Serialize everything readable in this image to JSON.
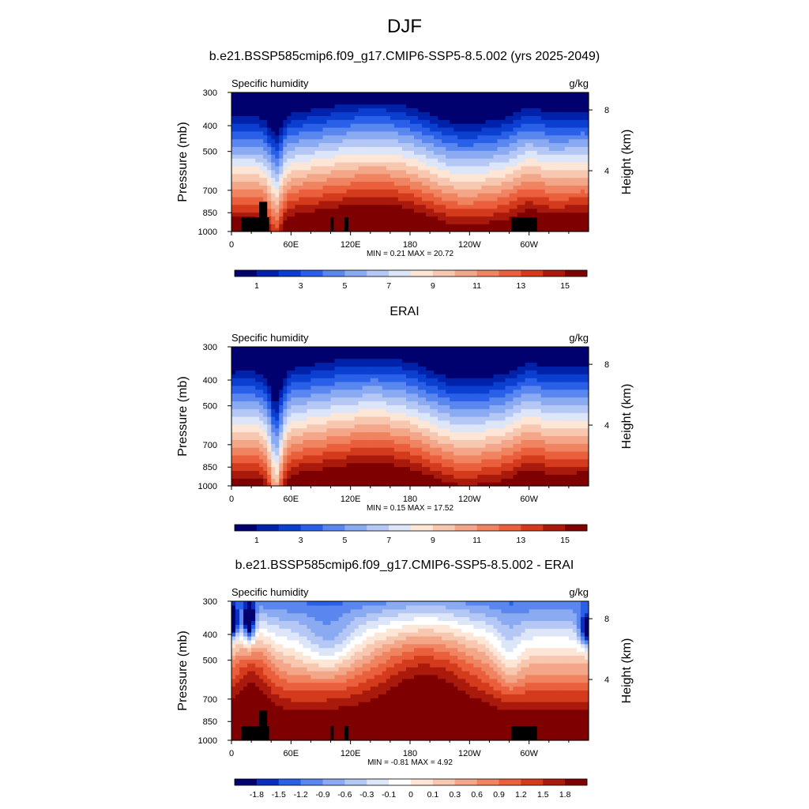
{
  "figure_title": "DJF",
  "colors": {
    "abs_scale": [
      "#00006e",
      "#0022aa",
      "#0a3fd0",
      "#2a60e8",
      "#5a86ef",
      "#8aaaf2",
      "#b5c8f5",
      "#dde6f8",
      "#fde6d6",
      "#f7c7b0",
      "#f4a688",
      "#f08460",
      "#ea5f3c",
      "#d43a1c",
      "#aa1a0c",
      "#7f0000"
    ],
    "diff_scale": [
      "#00006e",
      "#0a2fc0",
      "#2a60e8",
      "#5a86ef",
      "#8aaaf2",
      "#b5c8f5",
      "#dde6f8",
      "#ffffff",
      "#fde6d6",
      "#f7c7b0",
      "#f4a688",
      "#f08460",
      "#ea5f3c",
      "#d43a1c",
      "#aa1a0c",
      "#7f0000"
    ]
  },
  "chart_data": [
    {
      "type": "heatmap",
      "title": "b.e21.BSSP585cmip6.f09_g17.CMIP6-SSP5-8.5.002 (yrs 2025-2049)",
      "left_label": "Specific humidity",
      "right_label": "g/kg",
      "ylabel": "Pressure (mb)",
      "ylabel_right": "Height (km)",
      "yticks": [
        "300",
        "400",
        "500",
        "700",
        "850",
        "1000"
      ],
      "yticks_right": [
        "8",
        "4"
      ],
      "xticks": [
        "0",
        "60E",
        "120E",
        "180",
        "120W",
        "60W"
      ],
      "stats": "MIN =   0.21  MAX =  20.72",
      "colorbar_labels": [
        "1",
        "3",
        "5",
        "7",
        "9",
        "11",
        "13",
        "15"
      ]
    },
    {
      "type": "heatmap",
      "title": "ERAI",
      "left_label": "Specific humidity",
      "right_label": "g/kg",
      "ylabel": "Pressure (mb)",
      "ylabel_right": "Height (km)",
      "yticks": [
        "300",
        "400",
        "500",
        "700",
        "850",
        "1000"
      ],
      "yticks_right": [
        "8",
        "4"
      ],
      "xticks": [
        "0",
        "60E",
        "120E",
        "180",
        "120W",
        "60W"
      ],
      "stats": "MIN =   0.15  MAX =  17.52",
      "colorbar_labels": [
        "1",
        "3",
        "5",
        "7",
        "9",
        "11",
        "13",
        "15"
      ]
    },
    {
      "type": "heatmap",
      "title": "b.e21.BSSP585cmip6.f09_g17.CMIP6-SSP5-8.5.002 - ERAI",
      "left_label": "Specific humidity",
      "right_label": "g/kg",
      "ylabel": "Pressure (mb)",
      "ylabel_right": "Height (km)",
      "yticks": [
        "300",
        "400",
        "500",
        "700",
        "850",
        "1000"
      ],
      "yticks_right": [
        "8",
        "4"
      ],
      "xticks": [
        "0",
        "60E",
        "120E",
        "180",
        "120W",
        "60W"
      ],
      "stats": "MIN =  -0.81  MAX =   4.92",
      "colorbar_labels": [
        "-1.8",
        "-1.5",
        "-1.2",
        "-0.9",
        "-0.6",
        "-0.3",
        "-0.1",
        "0",
        "0.1",
        "0.3",
        "0.6",
        "0.9",
        "1.2",
        "1.5",
        "1.8"
      ]
    }
  ]
}
